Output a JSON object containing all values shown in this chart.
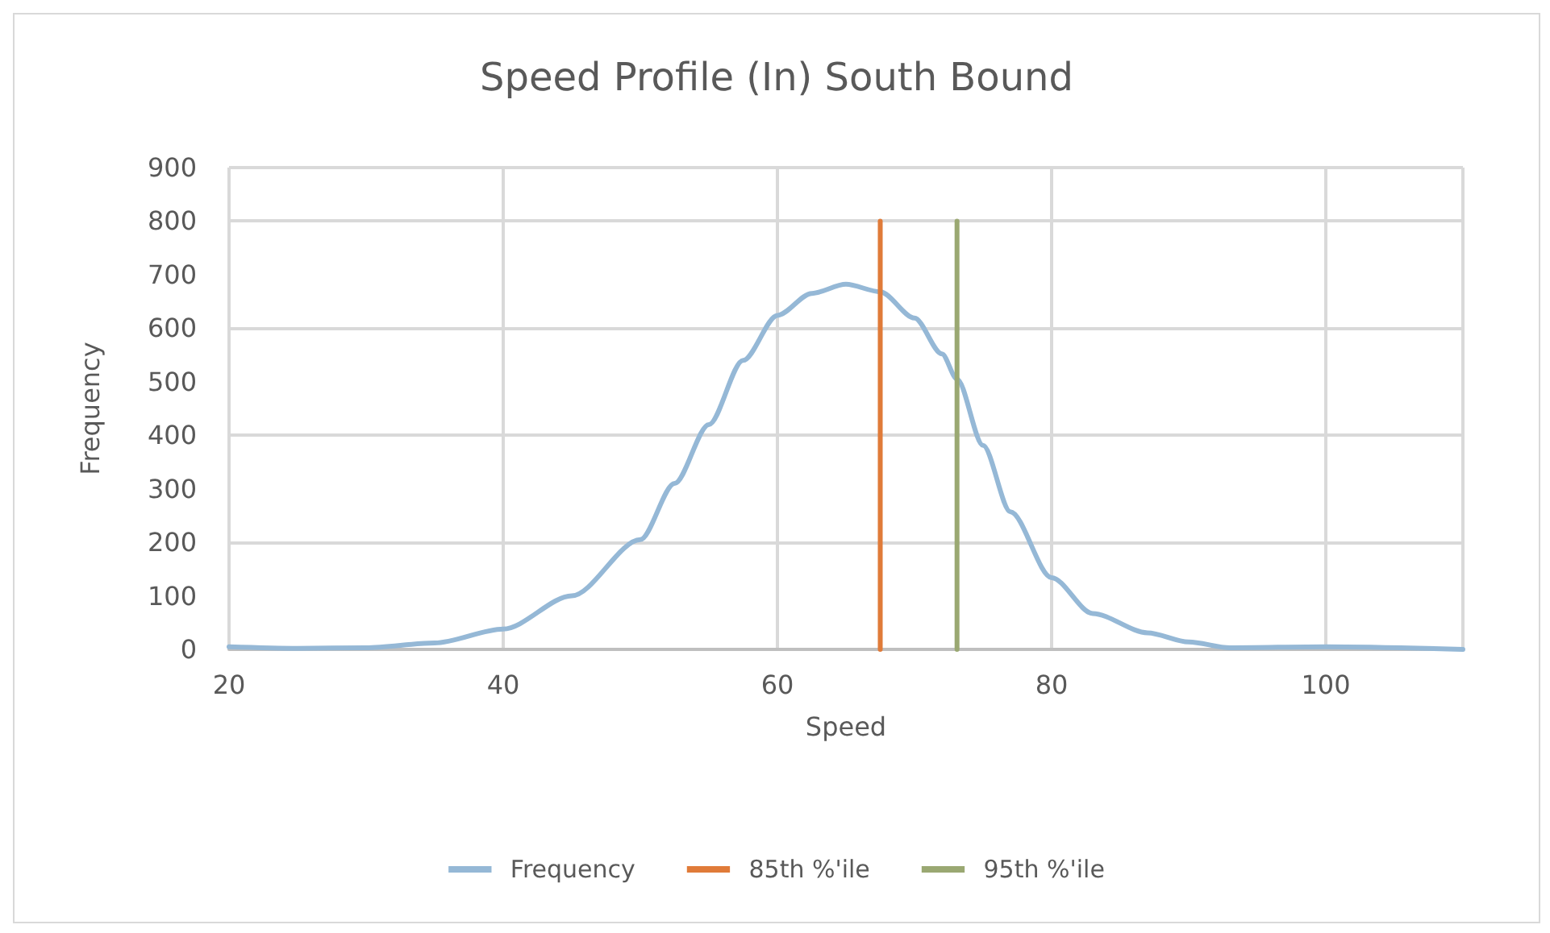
{
  "chart_data": {
    "type": "line",
    "title": "Speed Profile (In) South Bound",
    "xlabel": "Speed",
    "ylabel": "Frequency",
    "xlim": [
      20,
      110
    ],
    "xticks": [
      20,
      40,
      60,
      80,
      100
    ],
    "ylim": [
      0,
      900
    ],
    "yticks": [
      0,
      100,
      200,
      300,
      400,
      500,
      600,
      700,
      800,
      900
    ],
    "grid": true,
    "legend": "bottom",
    "marker": "none",
    "line_style": "solid",
    "series": [
      {
        "name": "Frequency",
        "color": "#95b8d6",
        "x": [
          20,
          25,
          30,
          35,
          40,
          45,
          50,
          52.5,
          55,
          57.5,
          60,
          62.5,
          65,
          67.5,
          70,
          72,
          73.1,
          75,
          77,
          80,
          83,
          87,
          90,
          93,
          100,
          110
        ],
        "values": [
          5,
          2,
          3,
          12,
          38,
          100,
          205,
          310,
          420,
          540,
          624,
          665,
          682,
          668,
          619,
          552,
          505,
          381,
          257,
          134,
          67,
          31,
          14,
          3,
          5,
          0
        ]
      },
      {
        "name": "85th %'ile",
        "color": "#e07b39",
        "x": [
          67.5,
          67.5
        ],
        "values": [
          0,
          800
        ]
      },
      {
        "name": "95th %'ile",
        "color": "#9aa872",
        "x": [
          73.1,
          73.1
        ],
        "values": [
          0,
          800
        ]
      }
    ]
  }
}
